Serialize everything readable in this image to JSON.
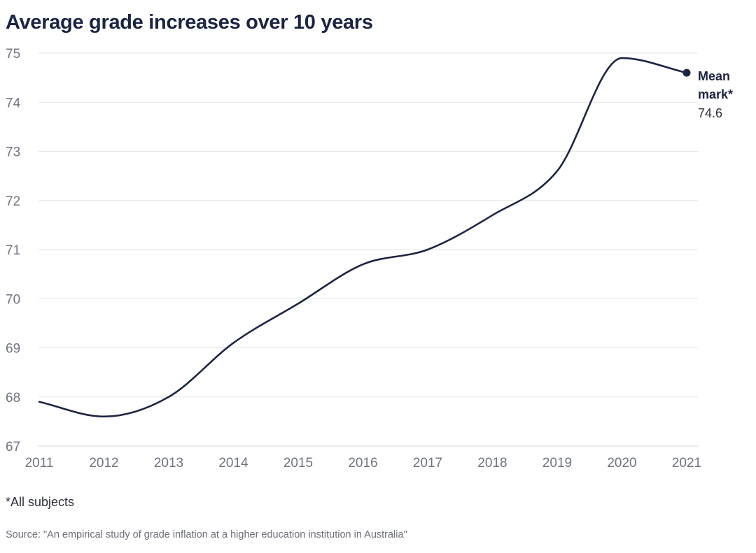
{
  "chart_data": {
    "type": "line",
    "title": "Average grade increases over 10 years",
    "xlabel": "",
    "ylabel": "",
    "x": [
      "2011",
      "2012",
      "2013",
      "2014",
      "2015",
      "2016",
      "2017",
      "2018",
      "2019",
      "2020",
      "2021"
    ],
    "series": [
      {
        "name": "Mean mark*",
        "values": [
          67.9,
          67.6,
          68.0,
          69.1,
          69.9,
          70.7,
          71.0,
          71.7,
          72.6,
          74.9,
          74.6
        ]
      }
    ],
    "ylim": [
      67,
      75
    ],
    "yticks": [
      "67",
      "68",
      "69",
      "70",
      "71",
      "72",
      "73",
      "74",
      "75"
    ],
    "grid": true,
    "end_label": {
      "name_line1": "Mean",
      "name_line2": "mark*",
      "value": "74.6"
    },
    "colors": {
      "line": "#1c2541",
      "grid": "#e6e6e6",
      "tick_text": "#6f7480"
    }
  },
  "footnote": "*All subjects",
  "source": "Source: \"An empirical study of grade inflation at a higher education institution in Australia\""
}
